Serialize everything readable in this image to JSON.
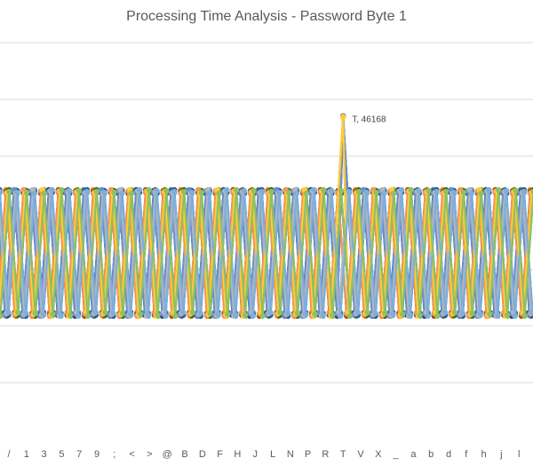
{
  "chart_data": {
    "type": "line",
    "title": "Processing Time Analysis - Password Byte 1",
    "x_tick_labels": [
      "/",
      "1",
      "3",
      "5",
      "7",
      "9",
      ";",
      "<",
      ">",
      "@",
      "B",
      "D",
      "F",
      "H",
      "J",
      "L",
      "N",
      "P",
      "R",
      "T",
      "V",
      "X",
      "_",
      "a",
      "b",
      "d",
      "f",
      "h",
      "j",
      "l"
    ],
    "peak": {
      "category": "T",
      "value": 46168,
      "label": "T, 46168"
    },
    "baseline_high": 43200,
    "baseline_low": 38400,
    "grid": true,
    "legend": "none",
    "series_colors": [
      "#4472c4",
      "#ed7d31",
      "#a5a5a5",
      "#ffc000",
      "#5b9bd5",
      "#70ad47",
      "#264478",
      "#9e480e",
      "#636363",
      "#997300",
      "#255e91",
      "#43682b",
      "#698ed0",
      "#f1975a",
      "#b7b7b7",
      "#ffcd33",
      "#7cafdd",
      "#8cc168"
    ]
  }
}
